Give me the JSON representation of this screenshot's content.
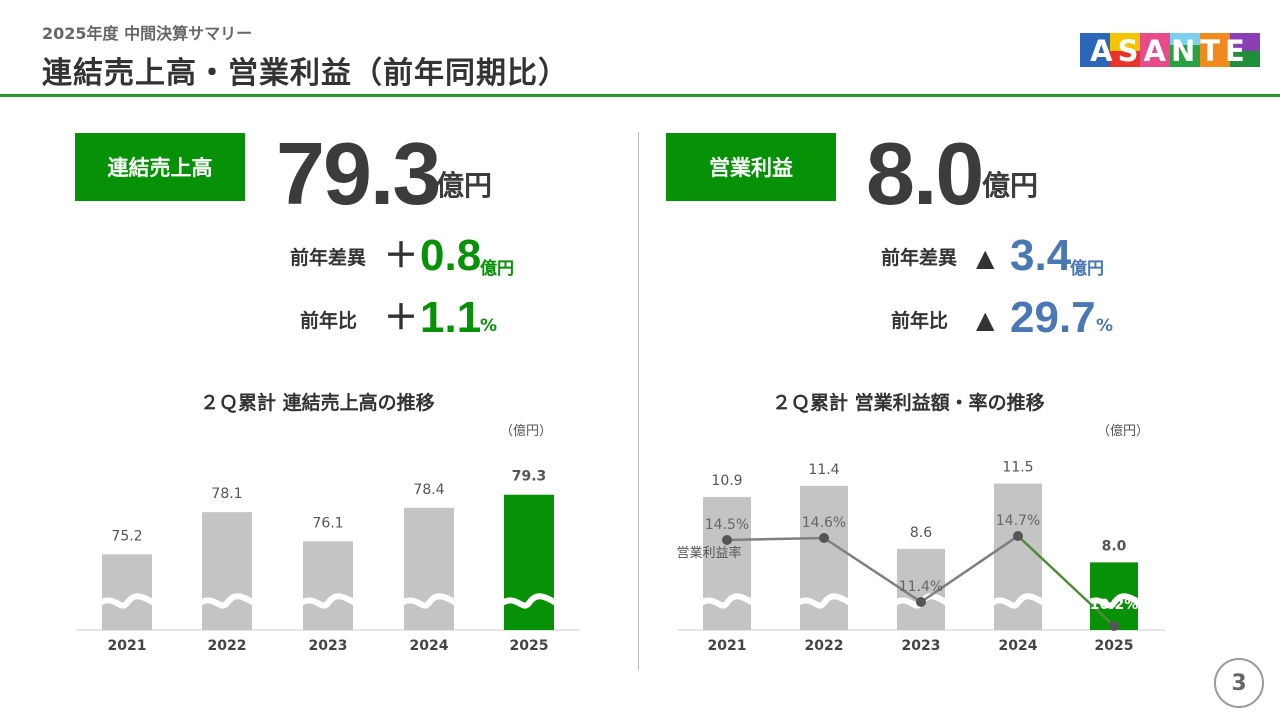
{
  "header": {
    "subtitle": "2025年度 中間決算サマリー",
    "title": "連結売上高・営業利益（前年同期比）",
    "logo_text": "ASANTE"
  },
  "kpi_sales": {
    "label": "連結売上高",
    "value": "79.3",
    "unit": "億円",
    "diff_label": "前年差異",
    "diff_sign": "＋",
    "diff_value": "0.8",
    "diff_unit": "億円",
    "ratio_label": "前年比",
    "ratio_sign": "＋",
    "ratio_value": "1.1",
    "ratio_unit": "%"
  },
  "kpi_profit": {
    "label": "営業利益",
    "value": "8.0",
    "unit": "億円",
    "diff_label": "前年差異",
    "diff_sign": "▲",
    "diff_value": "3.4",
    "diff_unit": "億円",
    "ratio_label": "前年比",
    "ratio_sign": "▲",
    "ratio_value": "29.7",
    "ratio_unit": "%"
  },
  "colors": {
    "accent": "#079107",
    "bar": "#c4c4c4",
    "negative": "#4a78b4",
    "line": "#7f7f7f"
  },
  "chart_data": [
    {
      "type": "bar",
      "title": "２Ｑ累計 連結売上高の推移",
      "unit": "（億円）",
      "categories": [
        "2021",
        "2022",
        "2023",
        "2024",
        "2025"
      ],
      "values": [
        75.2,
        78.1,
        76.1,
        78.4,
        79.3
      ],
      "value_labels": [
        "75.2",
        "78.1",
        "76.1",
        "78.4",
        "79.3"
      ],
      "highlight_index": 4,
      "axis_break": true,
      "ylim": [
        70,
        81
      ]
    },
    {
      "type": "bar+line",
      "title": "２Ｑ累計 営業利益額・率の推移",
      "unit": "（億円）",
      "categories": [
        "2021",
        "2022",
        "2023",
        "2024",
        "2025"
      ],
      "values": [
        10.9,
        11.4,
        8.6,
        11.5,
        8.0
      ],
      "value_labels": [
        "10.9",
        "11.4",
        "8.6",
        "11.5",
        "8.0"
      ],
      "rate_values": [
        14.5,
        14.6,
        11.4,
        14.7,
        10.2
      ],
      "rate_labels": [
        "14.5%",
        "14.6%",
        "11.4%",
        "14.7%",
        "10.2%"
      ],
      "rate_series_label": "営業利益率",
      "highlight_index": 4,
      "axis_break": true,
      "ylim": [
        5.0,
        12.1
      ],
      "rate_ylim": [
        0,
        30
      ]
    }
  ],
  "page_number": "3"
}
